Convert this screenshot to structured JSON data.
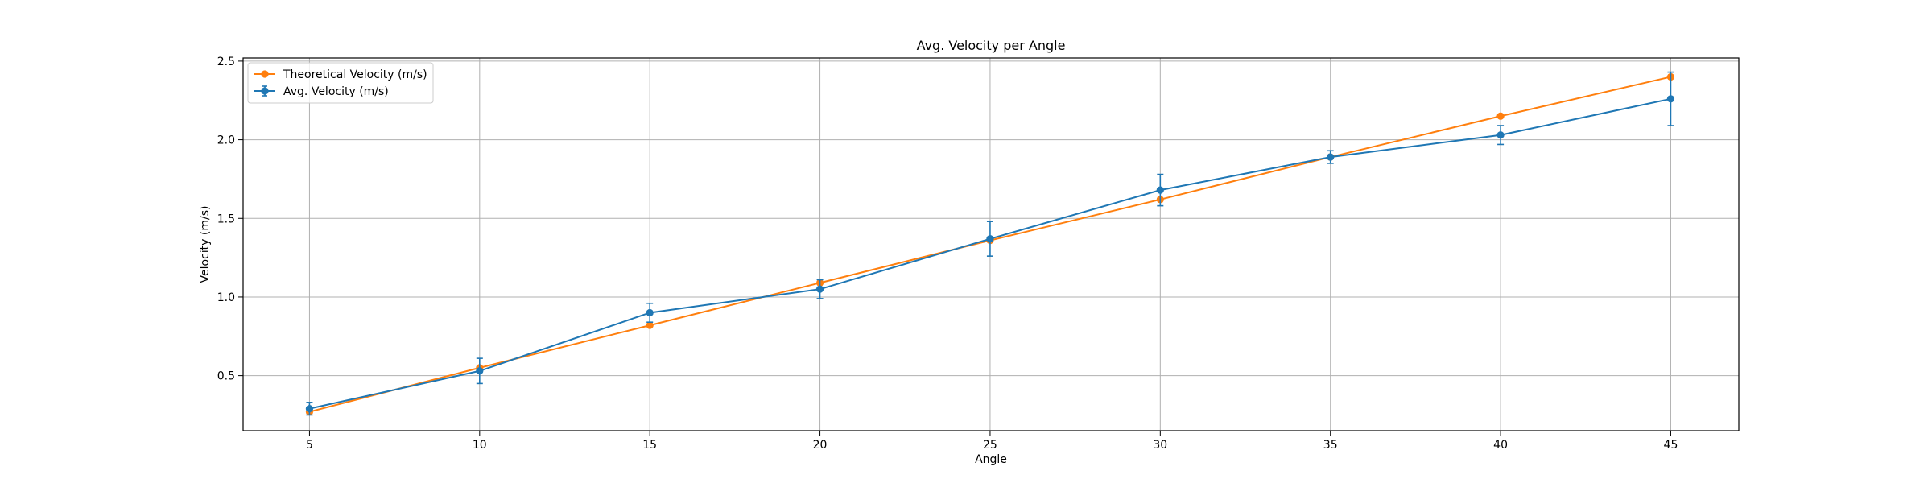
{
  "chart_data": {
    "type": "line",
    "title": "Avg. Velocity per Angle",
    "xlabel": "Angle",
    "ylabel": "Velocity (m/s)",
    "x": [
      5,
      10,
      15,
      20,
      25,
      30,
      35,
      40,
      45
    ],
    "xlim": [
      3.05,
      47.0
    ],
    "ylim": [
      0.15,
      2.52
    ],
    "xticks": [
      5,
      10,
      15,
      20,
      25,
      30,
      35,
      40,
      45
    ],
    "yticks": [
      0.5,
      1.0,
      1.5,
      2.0,
      2.5
    ],
    "xtick_labels": [
      "5",
      "10",
      "15",
      "20",
      "25",
      "30",
      "35",
      "40",
      "45"
    ],
    "ytick_labels": [
      "0.5",
      "1.0",
      "1.5",
      "2.0",
      "2.5"
    ],
    "grid": true,
    "legend_position": "top-left",
    "series": [
      {
        "name": "Theoretical Velocity (m/s)",
        "color": "#ff7f0e",
        "marker": "circle",
        "values": [
          0.27,
          0.55,
          0.82,
          1.09,
          1.36,
          1.62,
          1.89,
          2.15,
          2.4
        ]
      },
      {
        "name": "Avg. Velocity (m/s)",
        "color": "#1f77b4",
        "marker": "circle",
        "error_bars": true,
        "values": [
          0.29,
          0.53,
          0.9,
          1.05,
          1.37,
          1.68,
          1.89,
          2.03,
          2.26
        ],
        "errors": [
          0.04,
          0.08,
          0.06,
          0.06,
          0.11,
          0.1,
          0.04,
          0.06,
          0.17
        ]
      }
    ]
  }
}
